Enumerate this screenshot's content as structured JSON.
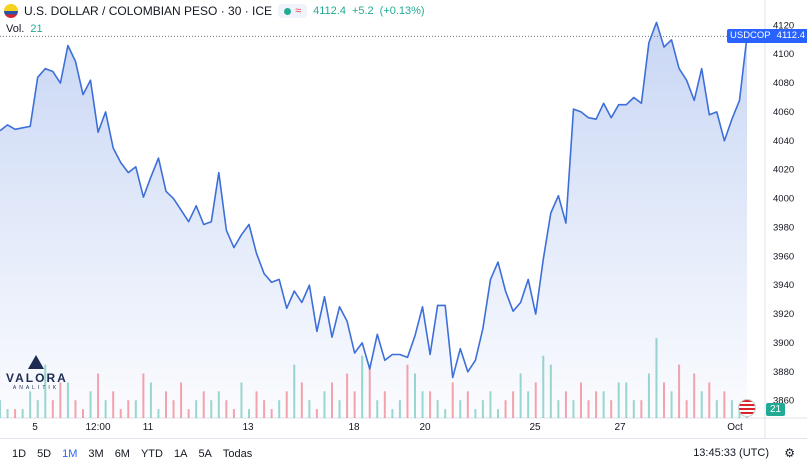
{
  "header": {
    "title": "U.S. DOLLAR / COLOMBIAN PESO · 30 · ICE",
    "price": "4112.4",
    "change": "+5.2",
    "change_pct": "(+0.13%)",
    "vol_label": "Vol.",
    "vol_value": "21"
  },
  "last_badge": {
    "symbol": "USDCOP",
    "price": "4112.4"
  },
  "volume_badge": "21",
  "logo": {
    "name": "VALORA",
    "sub": "ANALITIK"
  },
  "time_ranges": [
    "1D",
    "5D",
    "1M",
    "3M",
    "6M",
    "YTD",
    "1A",
    "5A",
    "Todas"
  ],
  "active_range": "1M",
  "clock": "13:45:33 (UTC)",
  "colors": {
    "line": "#3d6fd9",
    "up": "#22ab94",
    "down": "#f23645",
    "accent": "#2962ff"
  },
  "chart_data": {
    "type": "area",
    "title": "U.S. DOLLAR / COLOMBIAN PESO · 30 · ICE",
    "x_ticks": [
      "5",
      "12:00",
      "11",
      "13",
      "18",
      "20",
      "25",
      "27",
      "Oct"
    ],
    "y_ticks": [
      4120,
      4100,
      4080,
      4060,
      4040,
      4020,
      4000,
      3980,
      3960,
      3940,
      3920,
      3900,
      3880,
      3860
    ],
    "ylim": [
      3848,
      4132
    ],
    "last_price": 4112.4,
    "x": [
      0,
      1,
      2,
      3,
      4,
      5,
      6,
      7,
      8,
      9,
      10,
      11,
      12,
      13,
      14,
      15,
      16,
      17,
      18,
      19,
      20,
      21,
      22,
      23,
      24,
      25,
      26,
      27,
      28,
      29,
      30,
      31,
      32,
      33,
      34,
      35,
      36,
      37,
      38,
      39,
      40,
      41,
      42,
      43,
      44,
      45,
      46,
      47,
      48,
      49,
      50,
      51,
      52,
      53,
      54,
      55,
      56,
      57,
      58,
      59,
      60,
      61,
      62,
      63,
      64,
      65,
      66,
      67,
      68,
      69,
      70,
      71,
      72,
      73,
      74,
      75,
      76,
      77,
      78,
      79,
      80,
      81,
      82,
      83,
      84,
      85,
      86,
      87,
      88,
      89,
      90,
      91,
      92,
      93,
      94,
      95,
      96,
      97,
      98,
      99
    ],
    "values": [
      4047,
      4051,
      4048,
      4049,
      4050,
      4084,
      4090,
      4088,
      4080,
      4106,
      4095,
      4072,
      4082,
      4046,
      4060,
      4035,
      4025,
      4018,
      4022,
      4001,
      4015,
      4028,
      4005,
      4000,
      3992,
      3984,
      3995,
      3982,
      3984,
      4018,
      3978,
      3966,
      3975,
      3982,
      3962,
      3948,
      3942,
      3944,
      3924,
      3936,
      3928,
      3940,
      3908,
      3932,
      3904,
      3925,
      3915,
      3893,
      3900,
      3882,
      3906,
      3888,
      3892,
      3892,
      3890,
      3905,
      3925,
      3892,
      3926,
      3926,
      3876,
      3896,
      3880,
      3888,
      3910,
      3944,
      3956,
      3936,
      3922,
      3928,
      3944,
      3920,
      3958,
      3990,
      4002,
      3983,
      4062,
      4060,
      4056,
      4055,
      4066,
      4056,
      4065,
      4065,
      4070,
      4066,
      4108,
      4122,
      4105,
      4110,
      4090,
      4082,
      4068,
      4090,
      4058,
      4060,
      4040,
      4055,
      4068,
      4112.4
    ],
    "volume": [
      2,
      1,
      1,
      1,
      3,
      2,
      6,
      2,
      4,
      4,
      2,
      1,
      3,
      5,
      2,
      3,
      1,
      2,
      2,
      5,
      4,
      1,
      3,
      2,
      4,
      1,
      2,
      3,
      2,
      3,
      2,
      1,
      4,
      1,
      3,
      2,
      1,
      2,
      3,
      6,
      4,
      2,
      1,
      3,
      4,
      2,
      5,
      3,
      7,
      6,
      2,
      3,
      1,
      2,
      6,
      5,
      3,
      3,
      2,
      1,
      4,
      2,
      3,
      1,
      2,
      3,
      1,
      2,
      3,
      5,
      3,
      4,
      7,
      6,
      2,
      3,
      2,
      4,
      2,
      3,
      3,
      2,
      4,
      4,
      2,
      2,
      5,
      9,
      4,
      3,
      6,
      2,
      5,
      3,
      4,
      2,
      3,
      2,
      1,
      2
    ]
  }
}
